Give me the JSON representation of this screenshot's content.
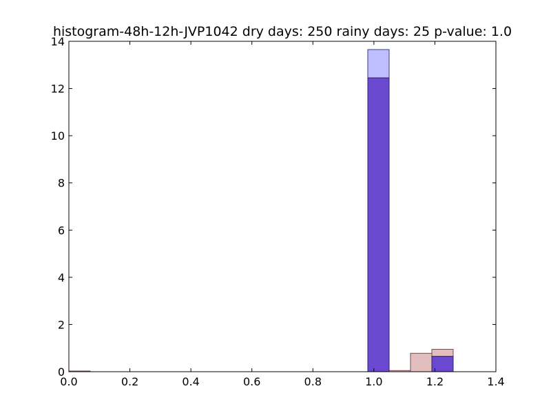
{
  "chart_data": {
    "type": "bar",
    "title": "histogram-48h-12h-JVP1042 dry days: 250 rainy days: 25 p-value: 1.0",
    "xlabel": "",
    "ylabel": "",
    "xlim": [
      0.0,
      1.4
    ],
    "ylim": [
      0,
      14
    ],
    "xticks": [
      "0.0",
      "0.2",
      "0.4",
      "0.6",
      "0.8",
      "1.0",
      "1.2",
      "1.4"
    ],
    "yticks": [
      "0",
      "2",
      "4",
      "6",
      "8",
      "10",
      "12",
      "14"
    ],
    "grid": false,
    "series": [
      {
        "color": "#7f7fff",
        "edge": "#3a3a80",
        "bins": [
          {
            "x0": 0.0,
            "x1": 0.07,
            "value": 0.0
          },
          {
            "x0": 0.98,
            "x1": 1.05,
            "value": 13.65
          },
          {
            "x0": 1.19,
            "x1": 1.26,
            "value": 0.65
          }
        ]
      },
      {
        "color": "#c87e7e",
        "edge": "#7a4848",
        "bins": [
          {
            "x0": 0.0,
            "x1": 0.07,
            "value": 0.03
          },
          {
            "x0": 0.98,
            "x1": 1.05,
            "value": 12.45
          },
          {
            "x0": 1.05,
            "x1": 1.12,
            "value": 0.05
          },
          {
            "x0": 1.12,
            "x1": 1.19,
            "value": 0.78
          },
          {
            "x0": 1.19,
            "x1": 1.26,
            "value": 0.95
          },
          {
            "x0": 1.26,
            "x1": 1.33,
            "value": 0.0
          }
        ]
      }
    ],
    "overlap_color": "#6a48d0"
  }
}
